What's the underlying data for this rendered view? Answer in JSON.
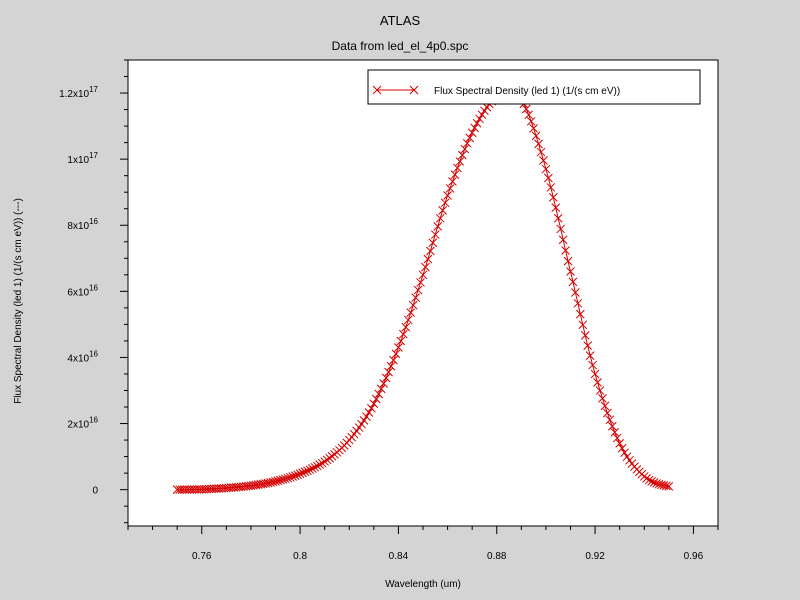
{
  "window": {
    "title": "ATLAS",
    "subtitle": "Data from led_el_4p0.spc"
  },
  "colors": {
    "background": "#d4d4d4",
    "plot_area": "#ffffff",
    "series": "#d40000"
  },
  "chart_data": {
    "type": "scatter",
    "title": "ATLAS",
    "subtitle": "Data from led_el_4p0.spc",
    "xlabel": "Wavelength (um)",
    "ylabel": "Flux Spectral Density (led 1) (1/(s cm eV)) (---)",
    "xlim": [
      0.73,
      0.97
    ],
    "ylim": [
      -1.1e+16,
      1.3e+17
    ],
    "x_ticks": [
      {
        "value": 0.76,
        "label": "0.76"
      },
      {
        "value": 0.8,
        "label": "0.8"
      },
      {
        "value": 0.84,
        "label": "0.84"
      },
      {
        "value": 0.88,
        "label": "0.88"
      },
      {
        "value": 0.92,
        "label": "0.92"
      },
      {
        "value": 0.96,
        "label": "0.96"
      }
    ],
    "y_ticks": [
      {
        "value": 0,
        "mantissa": "0",
        "exponent": ""
      },
      {
        "value": 2e+16,
        "mantissa": "2x10",
        "exponent": "16"
      },
      {
        "value": 4e+16,
        "mantissa": "4x10",
        "exponent": "16"
      },
      {
        "value": 6e+16,
        "mantissa": "6x10",
        "exponent": "16"
      },
      {
        "value": 8e+16,
        "mantissa": "8x10",
        "exponent": "16"
      },
      {
        "value": 1e+17,
        "mantissa": "1x10",
        "exponent": "17"
      },
      {
        "value": 1.2e+17,
        "mantissa": "1.2x10",
        "exponent": "17"
      }
    ],
    "legend": {
      "position": "top-right",
      "entries": [
        "Flux Spectral Density (led 1) (1/(s cm eV))"
      ]
    },
    "grid": false,
    "series": [
      {
        "name": "Flux Spectral Density (led 1) (1/(s cm eV))",
        "marker": "x",
        "x": [
          0.75,
          0.76,
          0.77,
          0.78,
          0.79,
          0.8,
          0.81,
          0.82,
          0.83,
          0.84,
          0.85,
          0.86,
          0.87,
          0.88,
          0.885,
          0.89,
          0.9,
          0.91,
          0.92,
          0.93,
          0.94,
          0.95
        ],
        "y": [
          0,
          100000000000000.0,
          500000000000000.0,
          1200000000000000.0,
          2500000000000000.0,
          4800000000000000.0,
          8500000000000000.0,
          1.5e+16,
          2.6e+16,
          4.3e+16,
          6.5e+16,
          8.9e+16,
          1.08e+17,
          1.19e+17,
          1.2e+17,
          1.18e+17,
          9.7e+16,
          6.6e+16,
          3.5e+16,
          1.4e+16,
          4000000000000000.0,
          1000000000000000.0
        ]
      }
    ]
  }
}
